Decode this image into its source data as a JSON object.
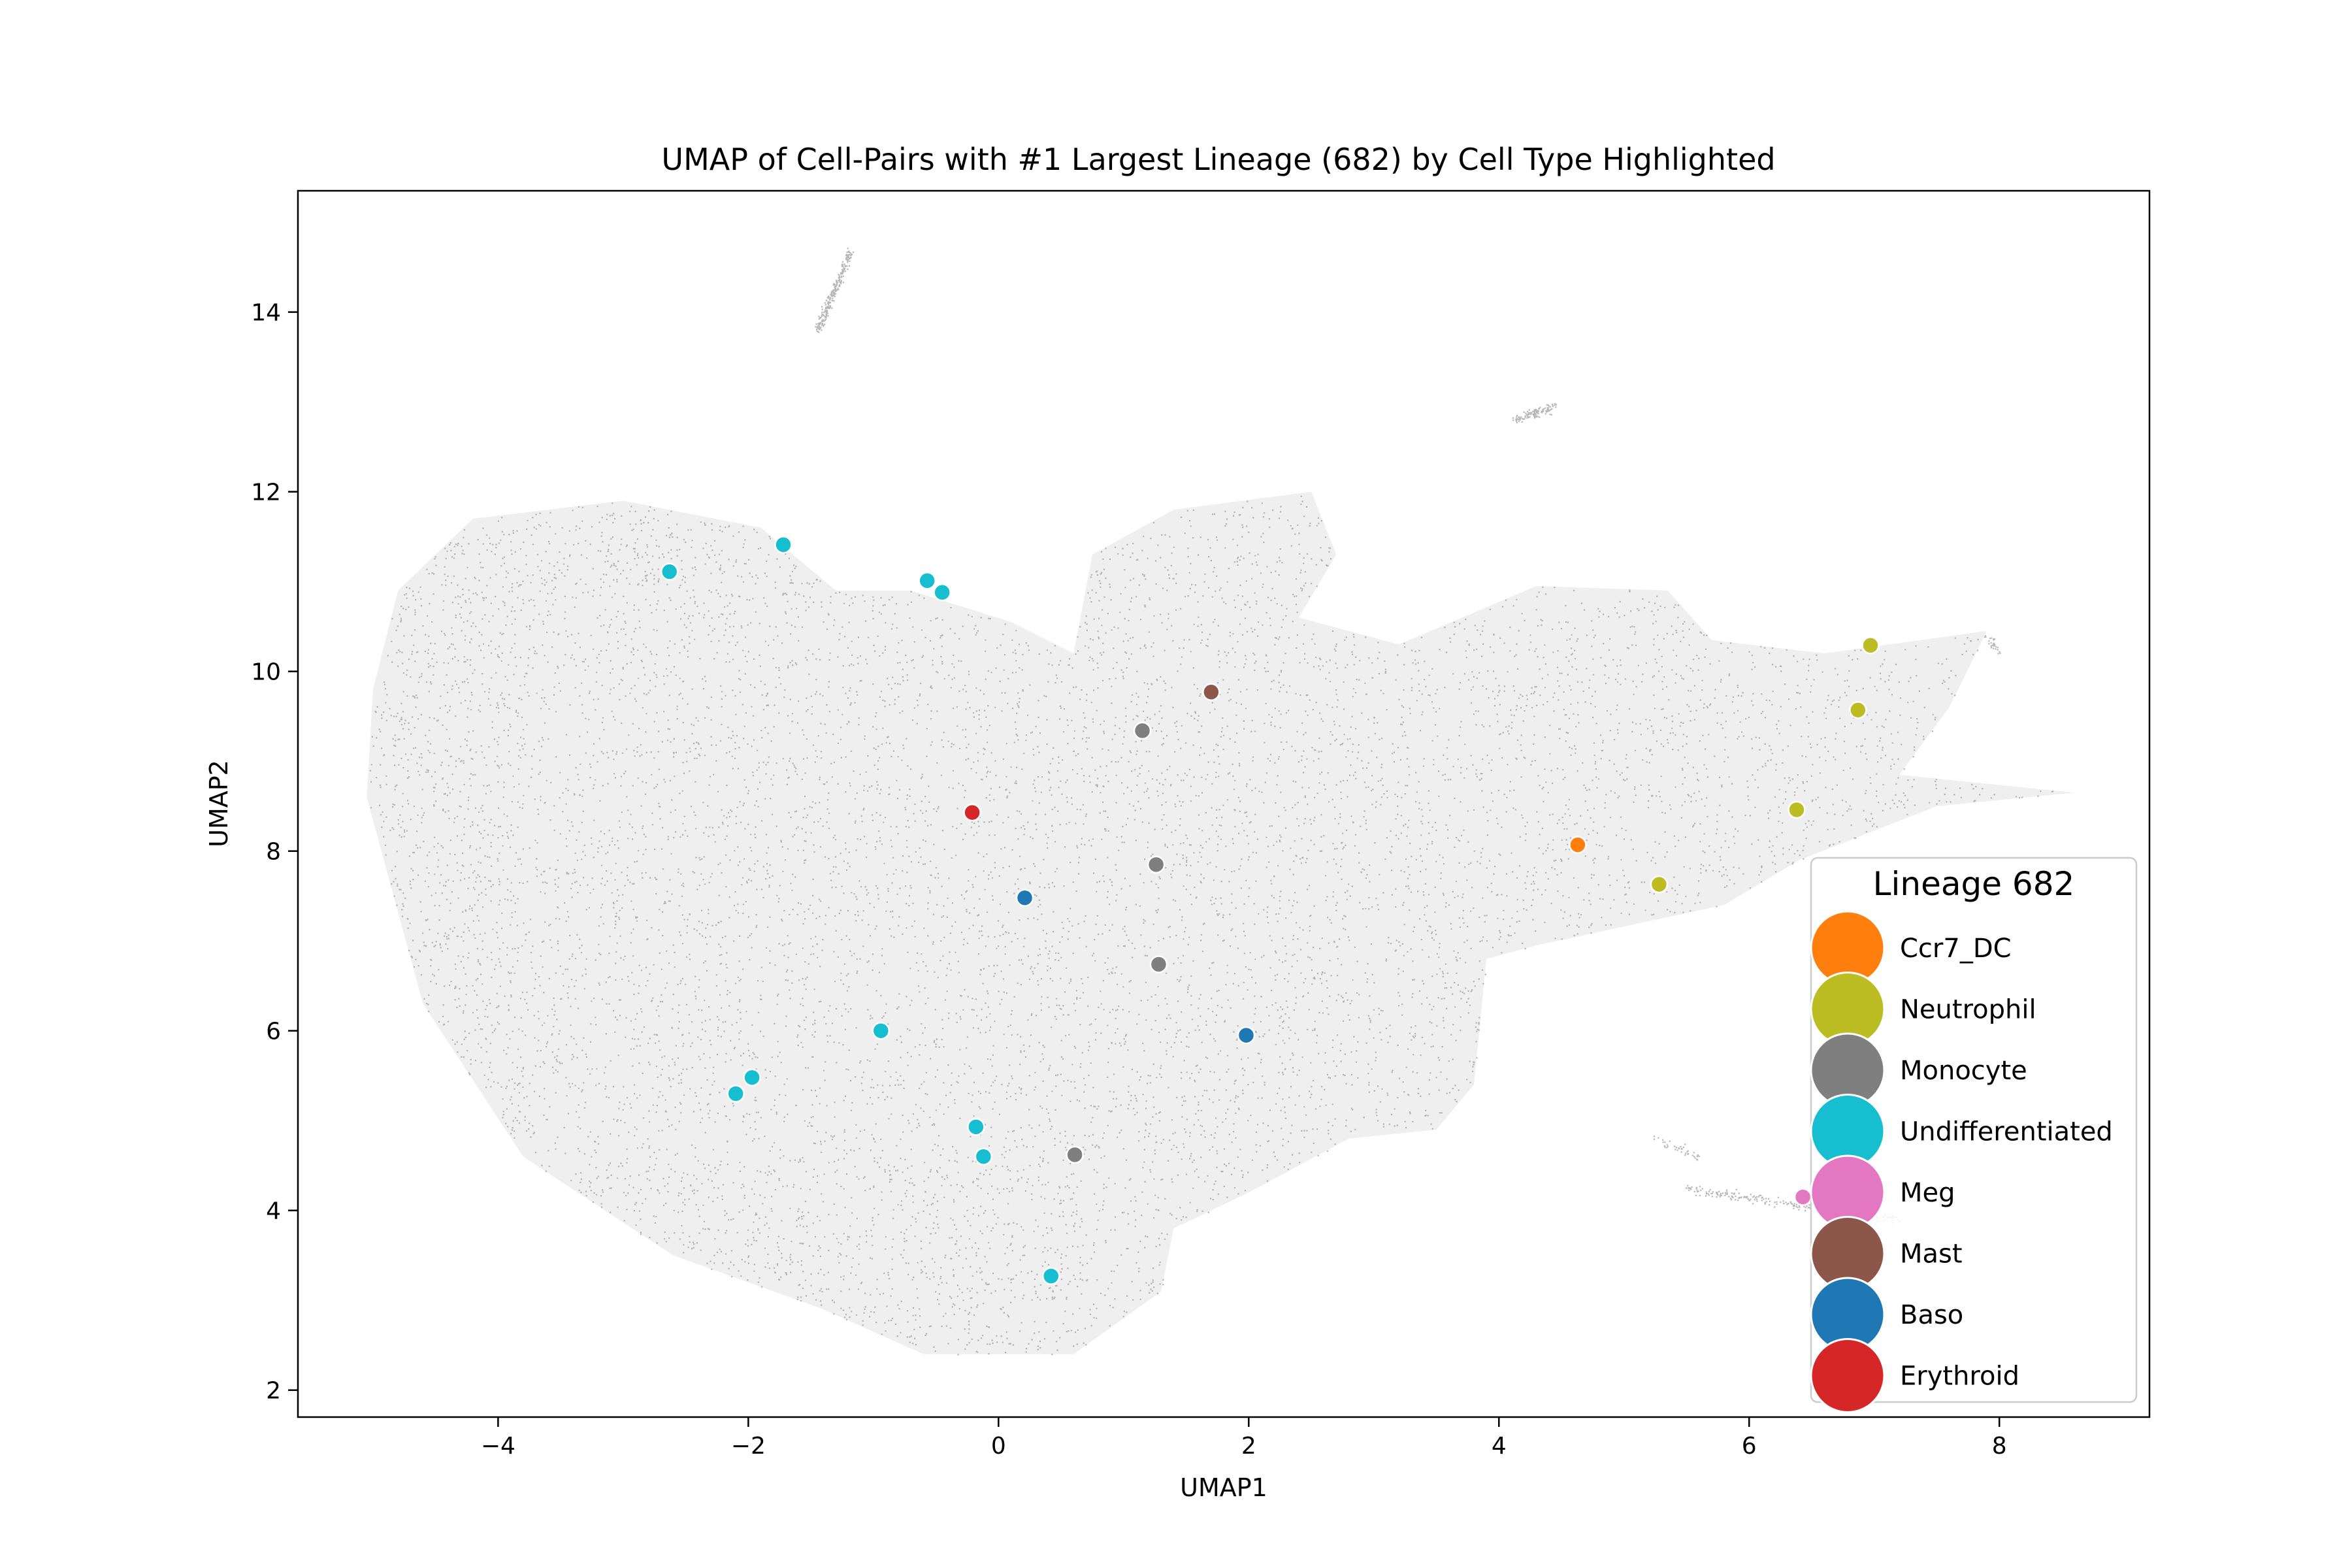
{
  "chart_data": {
    "type": "scatter",
    "title": "UMAP of Cell-Pairs with #1 Largest Lineage (682) by Cell Type Highlighted",
    "xlabel": "UMAP1",
    "ylabel": "UMAP2",
    "xlim": [
      -5.6,
      9.2
    ],
    "ylim": [
      1.7,
      15.35
    ],
    "xticks": [
      -4,
      -2,
      0,
      2,
      4,
      6,
      8
    ],
    "yticks": [
      2,
      4,
      6,
      8,
      10,
      12,
      14
    ],
    "xtick_labels": [
      "−4",
      "−2",
      "0",
      "2",
      "4",
      "6",
      "8"
    ],
    "ytick_labels": [
      "2",
      "4",
      "6",
      "8",
      "10",
      "12",
      "14"
    ],
    "background_color": "#9e9e9e",
    "legend": {
      "title": "Lineage 682",
      "placement": "lower right",
      "entries": [
        {
          "label": "Ccr7_DC",
          "color": "#ff7f0e"
        },
        {
          "label": "Neutrophil",
          "color": "#bcbd22"
        },
        {
          "label": "Monocyte",
          "color": "#7f7f7f"
        },
        {
          "label": "Undifferentiated",
          "color": "#17becf"
        },
        {
          "label": "Meg",
          "color": "#e377c2"
        },
        {
          "label": "Mast",
          "color": "#8c564b"
        },
        {
          "label": "Baso",
          "color": "#1f77b4"
        },
        {
          "label": "Erythroid",
          "color": "#d62728"
        }
      ]
    },
    "series": [
      {
        "name": "Ccr7_DC",
        "color": "#ff7f0e",
        "points": [
          [
            4.63,
            8.07
          ]
        ]
      },
      {
        "name": "Neutrophil",
        "color": "#bcbd22",
        "points": [
          [
            6.97,
            10.29
          ],
          [
            6.87,
            9.57
          ],
          [
            6.38,
            8.46
          ],
          [
            5.28,
            7.63
          ]
        ]
      },
      {
        "name": "Monocyte",
        "color": "#7f7f7f",
        "points": [
          [
            1.15,
            9.34
          ],
          [
            1.26,
            7.85
          ],
          [
            1.28,
            6.74
          ],
          [
            0.61,
            4.62
          ]
        ]
      },
      {
        "name": "Undifferentiated",
        "color": "#17becf",
        "points": [
          [
            -2.63,
            11.11
          ],
          [
            -1.72,
            11.41
          ],
          [
            -0.57,
            11.01
          ],
          [
            -0.45,
            10.88
          ],
          [
            -0.94,
            6.0
          ],
          [
            -1.97,
            5.48
          ],
          [
            -2.1,
            5.3
          ],
          [
            -0.18,
            4.93
          ],
          [
            -0.12,
            4.6
          ],
          [
            0.42,
            3.27
          ]
        ]
      },
      {
        "name": "Meg",
        "color": "#e377c2",
        "points": [
          [
            6.43,
            4.15
          ]
        ]
      },
      {
        "name": "Mast",
        "color": "#8c564b",
        "points": [
          [
            1.7,
            9.77
          ]
        ]
      },
      {
        "name": "Baso",
        "color": "#1f77b4",
        "points": [
          [
            0.21,
            7.48
          ],
          [
            1.98,
            5.95
          ]
        ]
      },
      {
        "name": "Erythroid",
        "color": "#d62728",
        "points": [
          [
            -0.21,
            8.43
          ]
        ]
      }
    ]
  }
}
